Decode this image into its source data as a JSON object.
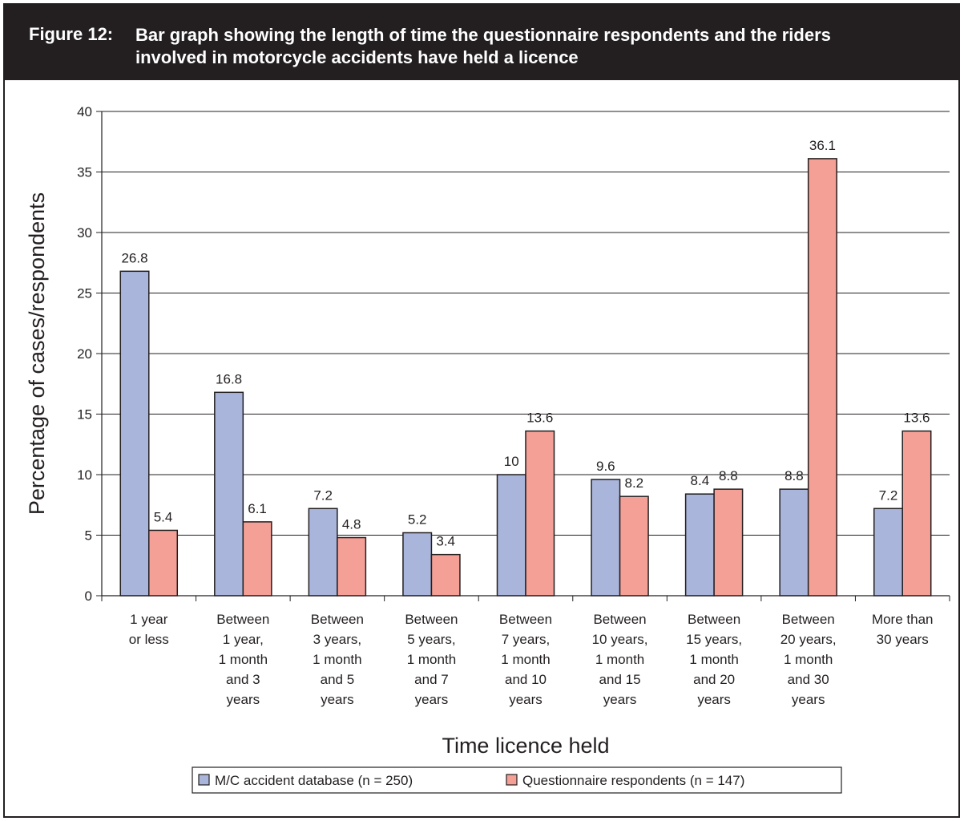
{
  "figure": {
    "label": "Figure 12:",
    "title": "Bar graph showing the length of time the questionnaire respondents and the riders involved in motorcycle accidents have held a licence"
  },
  "chart_data": {
    "type": "bar",
    "xlabel": "Time licence held",
    "ylabel": "Percentage of cases/respondents",
    "ylim": [
      0,
      40
    ],
    "yticks": [
      0,
      5,
      10,
      15,
      20,
      25,
      30,
      35,
      40
    ],
    "grid": true,
    "legend_position": "bottom",
    "categories": [
      "1 year or less",
      "Between 1 year, 1 month and 3 years",
      "Between 3 years, 1 month and 5 years",
      "Between 5 years, 1 month and 7 years",
      "Between 7 years, 1 month and 10 years",
      "Between 10 years, 1 month and 15 years",
      "Between 15 years, 1 month and 20 years",
      "Between 20 years, 1 month and 30 years",
      "More than 30 years"
    ],
    "category_lines": [
      [
        "1 year",
        "or less"
      ],
      [
        "Between",
        "1 year,",
        "1 month",
        "and 3",
        "years"
      ],
      [
        "Between",
        "3 years,",
        "1 month",
        "and 5",
        "years"
      ],
      [
        "Between",
        "5 years,",
        "1 month",
        "and 7",
        "years"
      ],
      [
        "Between",
        "7 years,",
        "1 month",
        "and 10",
        "years"
      ],
      [
        "Between",
        "10 years,",
        "1 month",
        "and 15",
        "years"
      ],
      [
        "Between",
        "15 years,",
        "1 month",
        "and 20",
        "years"
      ],
      [
        "Between",
        "20 years,",
        "1 month",
        "and 30",
        "years"
      ],
      [
        "More than",
        "30 years"
      ]
    ],
    "series": [
      {
        "name": "M/C accident database (n = 250)",
        "color": "#a9b5db",
        "values": [
          26.8,
          16.8,
          7.2,
          5.2,
          10,
          9.6,
          8.4,
          8.8,
          7.2
        ],
        "labels": [
          "26.8",
          "16.8",
          "7.2",
          "5.2",
          "10",
          "9.6",
          "8.4",
          "8.8",
          "7.2"
        ]
      },
      {
        "name": "Questionnaire respondents (n = 147)",
        "color": "#f4a096",
        "values": [
          5.4,
          6.1,
          4.8,
          3.4,
          13.6,
          8.2,
          8.8,
          36.1,
          13.6
        ],
        "labels": [
          "5.4",
          "6.1",
          "4.8",
          "3.4",
          "13.6",
          "8.2",
          "8.8",
          "36.1",
          "13.6"
        ]
      }
    ]
  }
}
